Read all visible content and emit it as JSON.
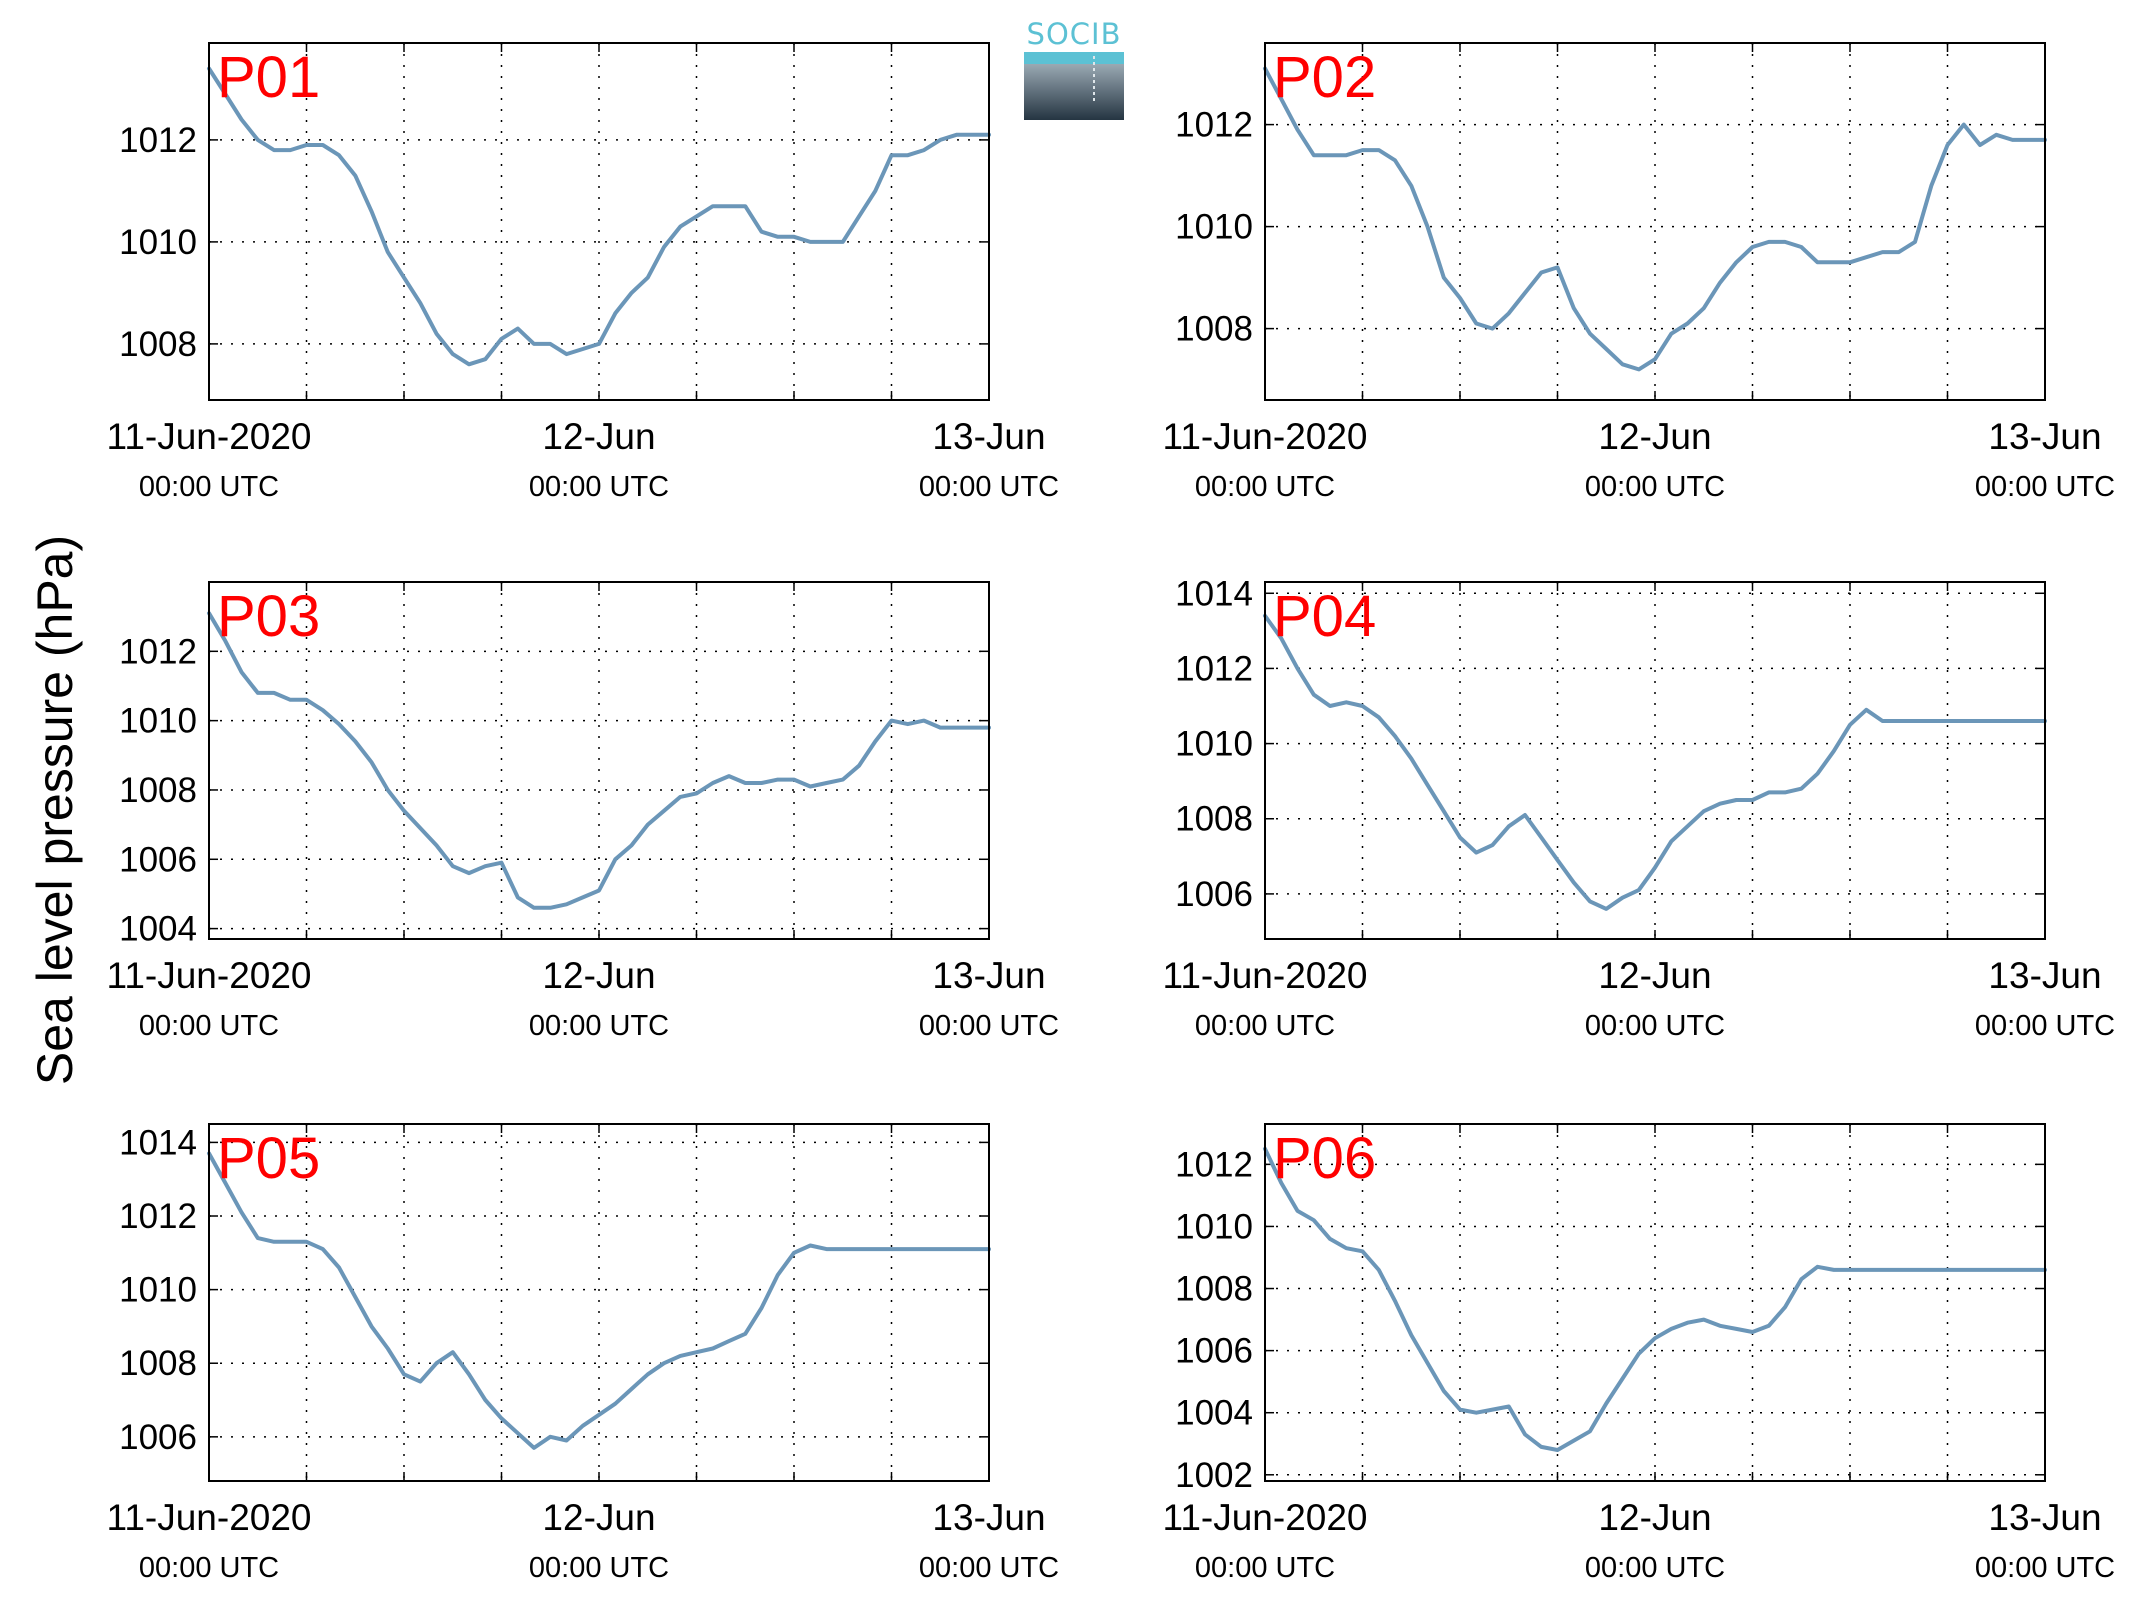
{
  "logo": {
    "text": "SOCIB"
  },
  "ylabel": "Sea level pressure (hPa)",
  "colors": {
    "line": "#6b96b8",
    "label": "#ff0000",
    "axis": "#000000",
    "grid": "#000000"
  },
  "chart_data": [
    {
      "type": "line",
      "label": "P01",
      "x": [
        0,
        1,
        2,
        3,
        4,
        5,
        6,
        7,
        8,
        9,
        10,
        11,
        12,
        13,
        14,
        15,
        16,
        17,
        18,
        19,
        20,
        21,
        22,
        23,
        24,
        25,
        26,
        27,
        28,
        29,
        30,
        31,
        32,
        33,
        34,
        35,
        36,
        37,
        38,
        39,
        40,
        41,
        42,
        43,
        44,
        45,
        46,
        47,
        48
      ],
      "xticks": [
        "11-Jun-2020",
        "12-Jun",
        "13-Jun"
      ],
      "xticks_sub": [
        "00:00 UTC",
        "00:00 UTC",
        "00:00 UTC"
      ],
      "ylim": [
        1006.9,
        1013.9
      ],
      "yticks": [
        1008,
        1010,
        1012
      ],
      "values": [
        1013.4,
        1012.9,
        1012.4,
        1012.0,
        1011.8,
        1011.8,
        1011.9,
        1011.9,
        1011.7,
        1011.3,
        1010.6,
        1009.8,
        1009.3,
        1008.8,
        1008.2,
        1007.8,
        1007.6,
        1007.7,
        1008.1,
        1008.3,
        1008.0,
        1008.0,
        1007.8,
        1007.9,
        1008.0,
        1008.6,
        1009.0,
        1009.3,
        1009.9,
        1010.3,
        1010.5,
        1010.7,
        1010.7,
        1010.7,
        1010.2,
        1010.1,
        1010.1,
        1010.0,
        1010.0,
        1010.0,
        1010.5,
        1011.0,
        1011.7,
        1011.7,
        1011.8,
        1012.0,
        1012.1,
        1012.1,
        1012.1
      ]
    },
    {
      "type": "line",
      "label": "P02",
      "x": [
        0,
        1,
        2,
        3,
        4,
        5,
        6,
        7,
        8,
        9,
        10,
        11,
        12,
        13,
        14,
        15,
        16,
        17,
        18,
        19,
        20,
        21,
        22,
        23,
        24,
        25,
        26,
        27,
        28,
        29,
        30,
        31,
        32,
        33,
        34,
        35,
        36,
        37,
        38,
        39,
        40,
        41,
        42,
        43,
        44,
        45,
        46,
        47,
        48
      ],
      "xticks": [
        "11-Jun-2020",
        "12-Jun",
        "13-Jun"
      ],
      "xticks_sub": [
        "00:00 UTC",
        "00:00 UTC",
        "00:00 UTC"
      ],
      "ylim": [
        1006.6,
        1013.6
      ],
      "yticks": [
        1008,
        1010,
        1012
      ],
      "values": [
        1013.1,
        1012.5,
        1011.9,
        1011.4,
        1011.4,
        1011.4,
        1011.5,
        1011.5,
        1011.3,
        1010.8,
        1010.0,
        1009.0,
        1008.6,
        1008.1,
        1008.0,
        1008.3,
        1008.7,
        1009.1,
        1009.2,
        1008.4,
        1007.9,
        1007.6,
        1007.3,
        1007.2,
        1007.4,
        1007.9,
        1008.1,
        1008.4,
        1008.9,
        1009.3,
        1009.6,
        1009.7,
        1009.7,
        1009.6,
        1009.3,
        1009.3,
        1009.3,
        1009.4,
        1009.5,
        1009.5,
        1009.7,
        1010.8,
        1011.6,
        1012.0,
        1011.6,
        1011.8,
        1011.7,
        1011.7,
        1011.7
      ]
    },
    {
      "type": "line",
      "label": "P03",
      "x": [
        0,
        1,
        2,
        3,
        4,
        5,
        6,
        7,
        8,
        9,
        10,
        11,
        12,
        13,
        14,
        15,
        16,
        17,
        18,
        19,
        20,
        21,
        22,
        23,
        24,
        25,
        26,
        27,
        28,
        29,
        30,
        31,
        32,
        33,
        34,
        35,
        36,
        37,
        38,
        39,
        40,
        41,
        42,
        43,
        44,
        45,
        46,
        47,
        48
      ],
      "xticks": [
        "11-Jun-2020",
        "12-Jun",
        "13-Jun"
      ],
      "xticks_sub": [
        "00:00 UTC",
        "00:00 UTC",
        "00:00 UTC"
      ],
      "ylim": [
        1003.7,
        1014.0
      ],
      "yticks": [
        1004,
        1006,
        1008,
        1010,
        1012
      ],
      "values": [
        1013.1,
        1012.3,
        1011.4,
        1010.8,
        1010.8,
        1010.6,
        1010.6,
        1010.3,
        1009.9,
        1009.4,
        1008.8,
        1008.0,
        1007.4,
        1006.9,
        1006.4,
        1005.8,
        1005.6,
        1005.8,
        1005.9,
        1004.9,
        1004.6,
        1004.6,
        1004.7,
        1004.9,
        1005.1,
        1006.0,
        1006.4,
        1007.0,
        1007.4,
        1007.8,
        1007.9,
        1008.2,
        1008.4,
        1008.2,
        1008.2,
        1008.3,
        1008.3,
        1008.1,
        1008.2,
        1008.3,
        1008.7,
        1009.4,
        1010.0,
        1009.9,
        1010.0,
        1009.8,
        1009.8,
        1009.8,
        1009.8
      ]
    },
    {
      "type": "line",
      "label": "P04",
      "x": [
        0,
        1,
        2,
        3,
        4,
        5,
        6,
        7,
        8,
        9,
        10,
        11,
        12,
        13,
        14,
        15,
        16,
        17,
        18,
        19,
        20,
        21,
        22,
        23,
        24,
        25,
        26,
        27,
        28,
        29,
        30,
        31,
        32,
        33,
        34,
        35,
        36,
        37,
        38,
        39,
        40,
        41,
        42,
        43,
        44,
        45,
        46,
        47,
        48
      ],
      "xticks": [
        "11-Jun-2020",
        "12-Jun",
        "13-Jun"
      ],
      "xticks_sub": [
        "00:00 UTC",
        "00:00 UTC",
        "00:00 UTC"
      ],
      "ylim": [
        1004.8,
        1014.3
      ],
      "yticks": [
        1006,
        1008,
        1010,
        1012,
        1014
      ],
      "values": [
        1013.4,
        1012.8,
        1012.0,
        1011.3,
        1011.0,
        1011.1,
        1011.0,
        1010.7,
        1010.2,
        1009.6,
        1008.9,
        1008.2,
        1007.5,
        1007.1,
        1007.3,
        1007.8,
        1008.1,
        1007.5,
        1006.9,
        1006.3,
        1005.8,
        1005.6,
        1005.9,
        1006.1,
        1006.7,
        1007.4,
        1007.8,
        1008.2,
        1008.4,
        1008.5,
        1008.5,
        1008.7,
        1008.7,
        1008.8,
        1009.2,
        1009.8,
        1010.5,
        1010.9,
        1010.6,
        1010.6,
        1010.6,
        1010.6,
        1010.6,
        1010.6,
        1010.6,
        1010.6,
        1010.6,
        1010.6,
        1010.6
      ]
    },
    {
      "type": "line",
      "label": "P05",
      "x": [
        0,
        1,
        2,
        3,
        4,
        5,
        6,
        7,
        8,
        9,
        10,
        11,
        12,
        13,
        14,
        15,
        16,
        17,
        18,
        19,
        20,
        21,
        22,
        23,
        24,
        25,
        26,
        27,
        28,
        29,
        30,
        31,
        32,
        33,
        34,
        35,
        36,
        37,
        38,
        39,
        40,
        41,
        42,
        43,
        44,
        45,
        46,
        47,
        48
      ],
      "xticks": [
        "11-Jun-2020",
        "12-Jun",
        "13-Jun"
      ],
      "xticks_sub": [
        "00:00 UTC",
        "00:00 UTC",
        "00:00 UTC"
      ],
      "ylim": [
        1004.8,
        1014.5
      ],
      "yticks": [
        1006,
        1008,
        1010,
        1012,
        1014
      ],
      "values": [
        1013.7,
        1012.9,
        1012.1,
        1011.4,
        1011.3,
        1011.3,
        1011.3,
        1011.1,
        1010.6,
        1009.8,
        1009.0,
        1008.4,
        1007.7,
        1007.5,
        1008.0,
        1008.3,
        1007.7,
        1007.0,
        1006.5,
        1006.1,
        1005.7,
        1006.0,
        1005.9,
        1006.3,
        1006.6,
        1006.9,
        1007.3,
        1007.7,
        1008.0,
        1008.2,
        1008.3,
        1008.4,
        1008.6,
        1008.8,
        1009.5,
        1010.4,
        1011.0,
        1011.2,
        1011.1,
        1011.1,
        1011.1,
        1011.1,
        1011.1,
        1011.1,
        1011.1,
        1011.1,
        1011.1,
        1011.1,
        1011.1
      ]
    },
    {
      "type": "line",
      "label": "P06",
      "x": [
        0,
        1,
        2,
        3,
        4,
        5,
        6,
        7,
        8,
        9,
        10,
        11,
        12,
        13,
        14,
        15,
        16,
        17,
        18,
        19,
        20,
        21,
        22,
        23,
        24,
        25,
        26,
        27,
        28,
        29,
        30,
        31,
        32,
        33,
        34,
        35,
        36,
        37,
        38,
        39,
        40,
        41,
        42,
        43,
        44,
        45,
        46,
        47,
        48
      ],
      "xticks": [
        "11-Jun-2020",
        "12-Jun",
        "13-Jun"
      ],
      "xticks_sub": [
        "00:00 UTC",
        "00:00 UTC",
        "00:00 UTC"
      ],
      "ylim": [
        1001.8,
        1013.3
      ],
      "yticks": [
        1002,
        1004,
        1006,
        1008,
        1010,
        1012
      ],
      "values": [
        1012.5,
        1011.4,
        1010.5,
        1010.2,
        1009.6,
        1009.3,
        1009.2,
        1008.6,
        1007.6,
        1006.5,
        1005.6,
        1004.7,
        1004.1,
        1004.0,
        1004.1,
        1004.2,
        1003.3,
        1002.9,
        1002.8,
        1003.1,
        1003.4,
        1004.3,
        1005.1,
        1005.9,
        1006.4,
        1006.7,
        1006.9,
        1007.0,
        1006.8,
        1006.7,
        1006.6,
        1006.8,
        1007.4,
        1008.3,
        1008.7,
        1008.6,
        1008.6,
        1008.6,
        1008.6,
        1008.6,
        1008.6,
        1008.6,
        1008.6,
        1008.6,
        1008.6,
        1008.6,
        1008.6,
        1008.6,
        1008.6
      ]
    }
  ]
}
